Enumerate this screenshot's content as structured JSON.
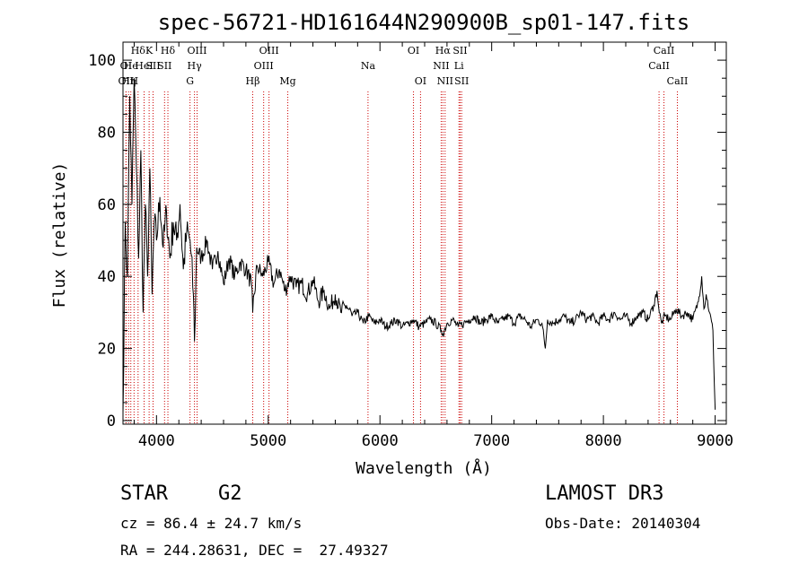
{
  "chart_data": {
    "type": "line",
    "title": "spec-56721-HD161644N290900B_sp01-147.fits",
    "xlabel": "Wavelength (Å)",
    "ylabel": "Flux (relative)",
    "xlim": [
      3700,
      9100
    ],
    "ylim": [
      -1,
      105
    ],
    "xticks": [
      4000,
      5000,
      6000,
      7000,
      8000,
      9000
    ],
    "xtick_labels": [
      "4000",
      "5000",
      "6000",
      "7000",
      "8000",
      "9000"
    ],
    "yticks": [
      0,
      20,
      40,
      60,
      80,
      100
    ],
    "ytick_labels": [
      "0",
      "20",
      "40",
      "60",
      "80",
      "100"
    ],
    "grid": false,
    "series": [
      {
        "name": "spectrum",
        "x": [
          3700,
          3720,
          3740,
          3760,
          3780,
          3800,
          3820,
          3840,
          3860,
          3880,
          3900,
          3920,
          3940,
          3960,
          3980,
          4000,
          4030,
          4060,
          4090,
          4120,
          4150,
          4180,
          4210,
          4240,
          4270,
          4300,
          4330,
          4340,
          4360,
          4400,
          4450,
          4500,
          4550,
          4600,
          4650,
          4700,
          4750,
          4800,
          4850,
          4861,
          4900,
          4950,
          5000,
          5050,
          5100,
          5150,
          5200,
          5250,
          5300,
          5350,
          5400,
          5450,
          5500,
          5550,
          5600,
          5650,
          5700,
          5750,
          5800,
          5850,
          5900,
          5950,
          6000,
          6050,
          6100,
          6150,
          6200,
          6250,
          6300,
          6350,
          6400,
          6450,
          6500,
          6550,
          6563,
          6600,
          6650,
          6700,
          6750,
          6800,
          6850,
          6900,
          6950,
          7000,
          7050,
          7100,
          7150,
          7200,
          7250,
          7300,
          7350,
          7400,
          7450,
          7480,
          7500,
          7550,
          7600,
          7650,
          7700,
          7750,
          7800,
          7850,
          7900,
          7950,
          8000,
          8050,
          8100,
          8150,
          8200,
          8250,
          8300,
          8350,
          8400,
          8450,
          8480,
          8500,
          8520,
          8550,
          8600,
          8650,
          8700,
          8750,
          8800,
          8850,
          8880,
          8900,
          8920,
          8950,
          8980,
          9000
        ],
        "y": [
          2,
          55,
          40,
          90,
          60,
          95,
          70,
          45,
          75,
          30,
          60,
          40,
          70,
          35,
          55,
          50,
          62,
          48,
          58,
          45,
          55,
          50,
          60,
          42,
          52,
          50,
          35,
          22,
          48,
          45,
          50,
          42,
          47,
          38,
          45,
          40,
          44,
          42,
          38,
          30,
          43,
          40,
          44,
          38,
          42,
          36,
          40,
          37,
          38,
          35,
          39,
          33,
          36,
          31,
          35,
          30,
          32,
          29,
          30,
          27,
          29,
          27,
          28,
          26,
          27,
          28,
          26,
          27,
          28,
          26,
          27,
          28,
          27,
          25,
          24,
          27,
          28,
          26,
          27,
          28,
          29,
          27,
          28,
          29,
          27,
          28,
          29,
          27,
          29,
          28,
          26,
          28,
          27,
          20,
          28,
          27,
          28,
          29,
          27,
          28,
          30,
          28,
          29,
          27,
          29,
          28,
          30,
          28,
          29,
          27,
          29,
          30,
          28,
          32,
          36,
          30,
          27,
          29,
          28,
          31,
          29,
          30,
          28,
          33,
          40,
          31,
          35,
          30,
          25,
          3
        ]
      }
    ],
    "line_markers": [
      {
        "x": 3727,
        "label": "OII",
        "row": 3
      },
      {
        "x": 3750,
        "label": "Hη",
        "row": 3
      },
      {
        "x": 3799,
        "label": "H",
        "row": 3
      },
      {
        "x": 3727,
        "label": "OI",
        "row": 2
      },
      {
        "x": 3770,
        "label": "He",
        "row": 2
      },
      {
        "x": 3835,
        "label": "Hδ",
        "row": 1
      },
      {
        "x": 3889,
        "label": "HeI",
        "row": 2
      },
      {
        "x": 3934,
        "label": "K",
        "row": 1
      },
      {
        "x": 3969,
        "label": "SII",
        "row": 2
      },
      {
        "x": 4102,
        "label": "Hδ",
        "row": 1
      },
      {
        "x": 4072,
        "label": "SII",
        "row": 2
      },
      {
        "x": 4300,
        "label": "G",
        "row": 3
      },
      {
        "x": 4340,
        "label": "Hγ",
        "row": 2
      },
      {
        "x": 4363,
        "label": "OIII",
        "row": 1
      },
      {
        "x": 4861,
        "label": "Hβ",
        "row": 3
      },
      {
        "x": 4959,
        "label": "OIII",
        "row": 2
      },
      {
        "x": 5007,
        "label": "OIII",
        "row": 1
      },
      {
        "x": 5175,
        "label": "Mg",
        "row": 3
      },
      {
        "x": 5893,
        "label": "Na",
        "row": 2
      },
      {
        "x": 6300,
        "label": "OI",
        "row": 1
      },
      {
        "x": 6363,
        "label": "OI",
        "row": 3
      },
      {
        "x": 6548,
        "label": "NII",
        "row": 2
      },
      {
        "x": 6563,
        "label": "Hα",
        "row": 1
      },
      {
        "x": 6583,
        "label": "NII",
        "row": 3
      },
      {
        "x": 6707,
        "label": "Li",
        "row": 2
      },
      {
        "x": 6717,
        "label": "SII",
        "row": 1
      },
      {
        "x": 6731,
        "label": "SII",
        "row": 3
      },
      {
        "x": 8498,
        "label": "CaII",
        "row": 2
      },
      {
        "x": 8542,
        "label": "CaII",
        "row": 1
      },
      {
        "x": 8662,
        "label": "CaII",
        "row": 3
      }
    ]
  },
  "info": {
    "object_class": "STAR",
    "subclass": "G2",
    "survey": "LAMOST DR3",
    "cz": "cz = 86.4 ± 24.7 km/s",
    "obs_date": "Obs-Date: 20140304",
    "coords": "RA = 244.28631, DEC =  27.49327"
  },
  "colors": {
    "line": "#000000",
    "marker": "#cc0000",
    "background": "#ffffff"
  }
}
